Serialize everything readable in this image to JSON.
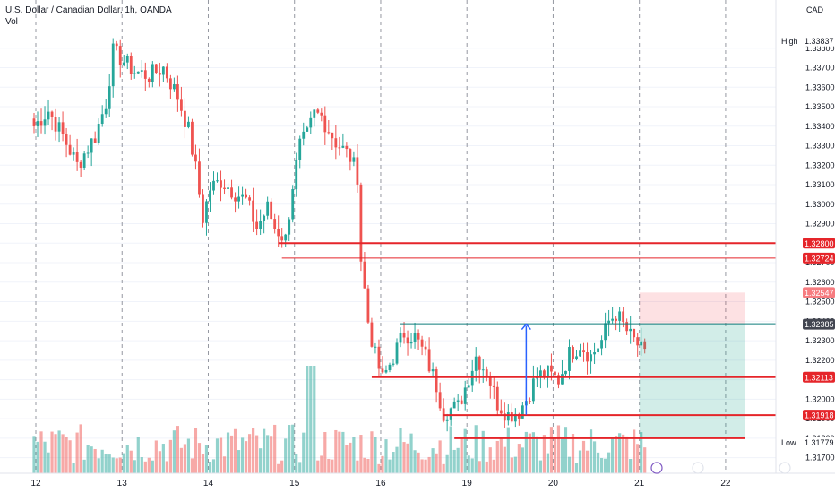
{
  "header": {
    "symbol_line": "U.S. Dollar / Canadian Dollar, 1h, OANDA",
    "volume_label": "Vol",
    "currency": "CAD"
  },
  "chart_data": {
    "type": "candlestick",
    "y_axis": {
      "range": [
        1.3162,
        1.339
      ],
      "ticks": [
        1.338,
        1.337,
        1.336,
        1.335,
        1.334,
        1.333,
        1.332,
        1.331,
        1.33,
        1.329,
        1.328,
        1.327,
        1.326,
        1.325,
        1.324,
        1.323,
        1.322,
        1.321,
        1.32,
        1.319,
        1.318,
        1.317
      ],
      "tick_labels": [
        "1.33800",
        "1.33700",
        "1.33600",
        "1.33500",
        "1.33400",
        "1.33300",
        "1.33200",
        "1.33100",
        "1.33000",
        "1.32900",
        "1.32800",
        "1.32700",
        "1.32600",
        "1.32500",
        "1.32400",
        "1.32300",
        "1.32200",
        "1.32100",
        "1.32000",
        "1.31900",
        "1.31800",
        "1.31700"
      ]
    },
    "x_axis": {
      "labels": [
        "12",
        "13",
        "14",
        "15",
        "16",
        "19",
        "20",
        "21",
        "22"
      ],
      "positions": [
        0.5,
        24.5,
        48.5,
        72.5,
        96.5,
        120.5,
        144.5,
        168.5,
        192.5
      ]
    },
    "price_labels": [
      {
        "text": "High",
        "value": "1.33837",
        "price": 1.33837,
        "style": "plain"
      },
      {
        "text": "",
        "value": "1.32800",
        "price": 1.328,
        "style": "red"
      },
      {
        "text": "",
        "value": "1.32724",
        "price": 1.32724,
        "style": "red"
      },
      {
        "text": "",
        "value": "1.32547",
        "price": 1.32547,
        "style": "pink"
      },
      {
        "text": "",
        "value": "1.32385",
        "price": 1.32385,
        "style": "dark"
      },
      {
        "text": "",
        "value": "1.32113",
        "price": 1.32113,
        "style": "red"
      },
      {
        "text": "",
        "value": "1.31918",
        "price": 1.31918,
        "style": "red"
      },
      {
        "text": "Low",
        "value": "1.31779",
        "price": 1.31779,
        "style": "plain"
      }
    ],
    "horizontal_lines": [
      {
        "price": 1.328,
        "from": 68,
        "to": 210,
        "color": "#e5252a",
        "width": 2
      },
      {
        "price": 1.32724,
        "from": 69,
        "to": 210,
        "color": "#e5252a",
        "width": 1
      },
      {
        "price": 1.32385,
        "from": 102,
        "to": 210,
        "color": "#0e7c7b",
        "width": 2
      },
      {
        "price": 1.32113,
        "from": 94,
        "to": 210,
        "color": "#e5252a",
        "width": 2
      },
      {
        "price": 1.31918,
        "from": 114,
        "to": 210,
        "color": "#e5252a",
        "width": 2
      },
      {
        "price": 1.318,
        "from": 117,
        "to": 198,
        "color": "#e5252a",
        "width": 2
      }
    ],
    "measure_arrow": {
      "x": 137,
      "from_price": 1.3192,
      "to_price": 1.32385
    },
    "position_tool": {
      "entry": 1.32385,
      "stop": 1.32547,
      "target": 1.318,
      "from": 168.5,
      "to": 198
    },
    "keypoints": [
      [
        0,
        1.334
      ],
      [
        4,
        1.3348
      ],
      [
        8,
        1.3335
      ],
      [
        12,
        1.332
      ],
      [
        17,
        1.3335
      ],
      [
        20,
        1.3352
      ],
      [
        22,
        1.3378
      ],
      [
        24,
        1.3375
      ],
      [
        28,
        1.3368
      ],
      [
        32,
        1.3366
      ],
      [
        36,
        1.337
      ],
      [
        40,
        1.3355
      ],
      [
        43,
        1.3338
      ],
      [
        45,
        1.3318
      ],
      [
        47,
        1.3293
      ],
      [
        49,
        1.3308
      ],
      [
        52,
        1.3312
      ],
      [
        56,
        1.3306
      ],
      [
        59,
        1.3302
      ],
      [
        62,
        1.3288
      ],
      [
        65,
        1.3298
      ],
      [
        67,
        1.3288
      ],
      [
        70,
        1.3282
      ],
      [
        72,
        1.331
      ],
      [
        74,
        1.333
      ],
      [
        76,
        1.3335
      ],
      [
        78,
        1.3346
      ],
      [
        80,
        1.3345
      ],
      [
        84,
        1.3332
      ],
      [
        88,
        1.3324
      ],
      [
        90,
        1.3315
      ],
      [
        91,
        1.3272
      ],
      [
        93,
        1.324
      ],
      [
        95,
        1.3222
      ],
      [
        97,
        1.321
      ],
      [
        100,
        1.3222
      ],
      [
        103,
        1.3234
      ],
      [
        106,
        1.3232
      ],
      [
        109,
        1.3222
      ],
      [
        112,
        1.3207
      ],
      [
        114,
        1.3193
      ],
      [
        116,
        1.3195
      ],
      [
        118,
        1.3196
      ],
      [
        120,
        1.3206
      ],
      [
        123,
        1.3222
      ],
      [
        126,
        1.3214
      ],
      [
        129,
        1.3198
      ],
      [
        132,
        1.3192
      ],
      [
        135,
        1.3194
      ],
      [
        137,
        1.32
      ],
      [
        140,
        1.3212
      ],
      [
        143,
        1.3213
      ],
      [
        146,
        1.321
      ],
      [
        149,
        1.3223
      ],
      [
        152,
        1.3228
      ],
      [
        155,
        1.3222
      ],
      [
        158,
        1.323
      ],
      [
        160,
        1.324
      ],
      [
        162,
        1.3244
      ],
      [
        164,
        1.3238
      ],
      [
        166,
        1.3232
      ],
      [
        168,
        1.3228
      ],
      [
        170,
        1.3222
      ]
    ],
    "volume": {
      "seed": 7,
      "spike_at": [
        76,
        77,
        78
      ],
      "max_height": 120
    }
  }
}
